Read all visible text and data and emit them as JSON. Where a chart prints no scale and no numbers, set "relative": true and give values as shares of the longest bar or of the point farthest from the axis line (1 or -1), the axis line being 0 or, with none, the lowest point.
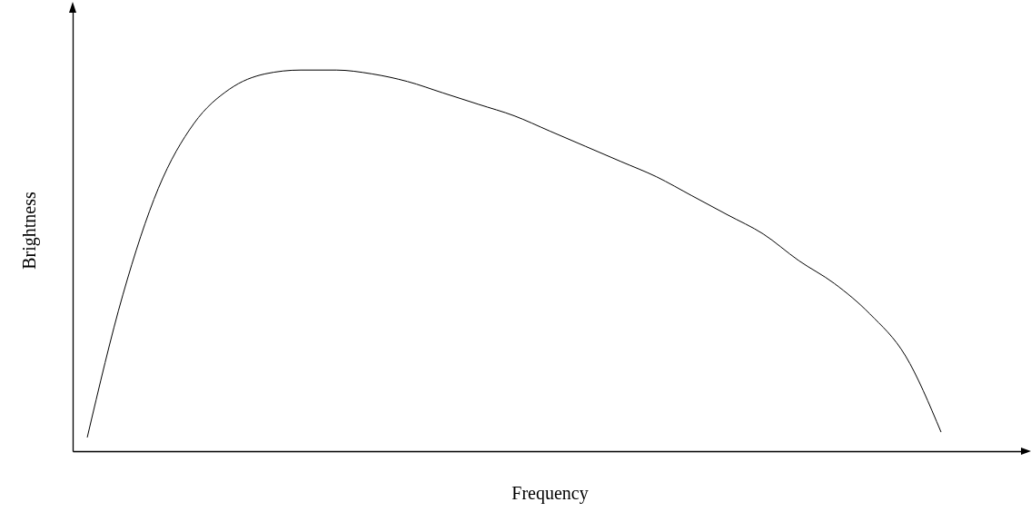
{
  "chart_data": {
    "type": "line",
    "relative": true,
    "xlabel": "Frequency",
    "ylabel": "Brightness",
    "tick_labels": false,
    "marker": "none",
    "line_style": "solid",
    "categories": [
      null,
      null,
      null,
      null,
      null,
      null,
      null,
      null,
      null,
      null,
      null,
      null,
      null,
      null,
      null,
      null,
      null,
      null,
      null,
      null,
      null,
      null,
      null,
      null,
      null
    ],
    "series": [
      {
        "color": "#000000",
        "values": [
          0.036,
          0.41,
          0.69,
          0.86,
          0.95,
          0.99,
          1.0,
          1.0,
          0.99,
          0.97,
          0.94,
          0.91,
          0.88,
          0.84,
          0.8,
          0.76,
          0.72,
          0.67,
          0.62,
          0.57,
          0.5,
          0.44,
          0.36,
          0.25,
          0.05
        ]
      }
    ]
  }
}
